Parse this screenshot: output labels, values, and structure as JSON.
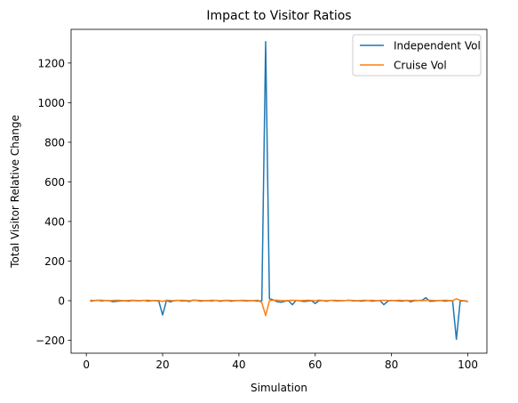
{
  "chart_data": {
    "type": "line",
    "title": "Impact to Visitor Ratios",
    "xlabel": "Simulation",
    "ylabel": "Total Visitor Relative Change",
    "xlim": [
      -4,
      105
    ],
    "ylim": [
      -265,
      1370
    ],
    "xticks": [
      0,
      20,
      40,
      60,
      80,
      100
    ],
    "yticks": [
      -200,
      0,
      200,
      400,
      600,
      800,
      1000,
      1200
    ],
    "grid": false,
    "legend_position": "top-right",
    "x": [
      1,
      2,
      3,
      4,
      5,
      6,
      7,
      8,
      9,
      10,
      11,
      12,
      13,
      14,
      15,
      16,
      17,
      18,
      19,
      20,
      21,
      22,
      23,
      24,
      25,
      26,
      27,
      28,
      29,
      30,
      31,
      32,
      33,
      34,
      35,
      36,
      37,
      38,
      39,
      40,
      41,
      42,
      43,
      44,
      45,
      46,
      47,
      48,
      49,
      50,
      51,
      52,
      53,
      54,
      55,
      56,
      57,
      58,
      59,
      60,
      61,
      62,
      63,
      64,
      65,
      66,
      67,
      68,
      69,
      70,
      71,
      72,
      73,
      74,
      75,
      76,
      77,
      78,
      79,
      80,
      81,
      82,
      83,
      84,
      85,
      86,
      87,
      88,
      89,
      90,
      91,
      92,
      93,
      94,
      95,
      96,
      97,
      98,
      99,
      100
    ],
    "series": [
      {
        "name": "Independent Vol",
        "color": "#1f77b4",
        "values": [
          -2,
          0,
          2,
          -1,
          1,
          0,
          -5,
          -3,
          -1,
          0,
          -2,
          1,
          0,
          -1,
          2,
          -2,
          0,
          1,
          -3,
          -72,
          1,
          -6,
          0,
          2,
          -1,
          0,
          -4,
          3,
          1,
          -2,
          0,
          0,
          -1,
          2,
          -3,
          0,
          1,
          -2,
          0,
          1,
          0,
          -1,
          0,
          0,
          -2,
          0,
          1308,
          10,
          4,
          -5,
          -8,
          -3,
          0,
          -20,
          2,
          -1,
          -4,
          -2,
          0,
          -14,
          0,
          1,
          -3,
          2,
          0,
          -1,
          0,
          1,
          2,
          -1,
          0,
          -2,
          0,
          1,
          -2,
          0,
          0,
          -20,
          -3,
          2,
          0,
          -1,
          -2,
          2,
          -5,
          0,
          1,
          2,
          15,
          -3,
          -2,
          0,
          1,
          -2,
          0,
          0,
          -195,
          -2,
          0,
          -5
        ]
      },
      {
        "name": "Cruise Vol",
        "color": "#ff7f0e",
        "values": [
          2,
          1,
          3,
          2,
          1,
          0,
          1,
          2,
          1,
          0,
          1,
          2,
          1,
          0,
          1,
          2,
          1,
          0,
          1,
          -4,
          2,
          1,
          0,
          1,
          2,
          1,
          0,
          1,
          2,
          1,
          0,
          1,
          2,
          1,
          0,
          1,
          2,
          1,
          0,
          1,
          2,
          1,
          0,
          1,
          2,
          -10,
          -75,
          0,
          3,
          2,
          1,
          0,
          1,
          2,
          1,
          0,
          1,
          2,
          1,
          0,
          3,
          1,
          0,
          1,
          2,
          1,
          0,
          1,
          2,
          1,
          0,
          1,
          2,
          1,
          2,
          0,
          1,
          2,
          1,
          0,
          1,
          2,
          1,
          0,
          1,
          2,
          1,
          0,
          1,
          2,
          1,
          0,
          1,
          2,
          1,
          0,
          10,
          2,
          0,
          -2
        ]
      }
    ]
  }
}
